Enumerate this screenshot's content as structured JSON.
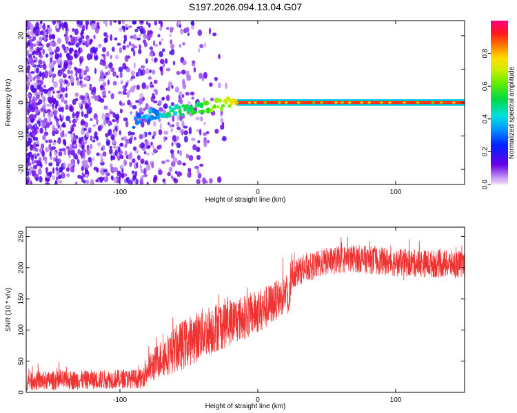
{
  "title": "S197.2026.094.13.04.G07",
  "chart_data": [
    {
      "type": "heatmap",
      "title": "S197.2026.094.13.04.G07",
      "xlabel": "Height of straight line (km)",
      "ylabel": "Frequency (Hz)",
      "xlim": [
        -168,
        150
      ],
      "ylim": [
        -24.5,
        24.5
      ],
      "xticks": [
        -100,
        0,
        100
      ],
      "yticks": [
        -20,
        -10,
        0,
        10,
        20
      ],
      "colorbar": {
        "label": "Normalized spectral amplitude",
        "range": [
          0,
          1
        ],
        "ticks": [
          0.0,
          0.2,
          0.4,
          0.6,
          0.8
        ],
        "colormap": "rainbow (purple-blue-cyan-green-yellow-red-magenta)"
      },
      "features": {
        "noise_region_x": [
          -168,
          -80
        ],
        "noise_amplitude": 0.1,
        "onset_x": -90,
        "onset_frequency_hz": -6,
        "converge_x": -15,
        "steady_frequency_hz": 0,
        "steady_amplitude": 0.85
      }
    },
    {
      "type": "line",
      "xlabel": "Height of straight line (km)",
      "ylabel": "SNR (10 * v/v)",
      "xlim": [
        -168,
        150
      ],
      "ylim": [
        0,
        265
      ],
      "xticks": [
        -100,
        0,
        100
      ],
      "yticks": [
        0,
        50,
        100,
        150,
        200,
        250
      ],
      "series": [
        {
          "name": "SNR",
          "color": "#ee3333",
          "x_anchor": [
            -168,
            -84,
            -82,
            -70,
            -55,
            -40,
            -25,
            -10,
            5,
            15,
            21,
            22,
            24,
            25,
            30,
            50,
            70,
            100,
            150
          ],
          "y_mean": [
            18,
            22,
            32,
            55,
            75,
            95,
            110,
            120,
            135,
            150,
            160,
            135,
            175,
            190,
            195,
            210,
            215,
            208,
            205
          ],
          "noise_amplitude": [
            15,
            15,
            22,
            30,
            40,
            40,
            40,
            35,
            35,
            30,
            30,
            30,
            25,
            25,
            22,
            22,
            22,
            22,
            22
          ]
        }
      ]
    }
  ]
}
